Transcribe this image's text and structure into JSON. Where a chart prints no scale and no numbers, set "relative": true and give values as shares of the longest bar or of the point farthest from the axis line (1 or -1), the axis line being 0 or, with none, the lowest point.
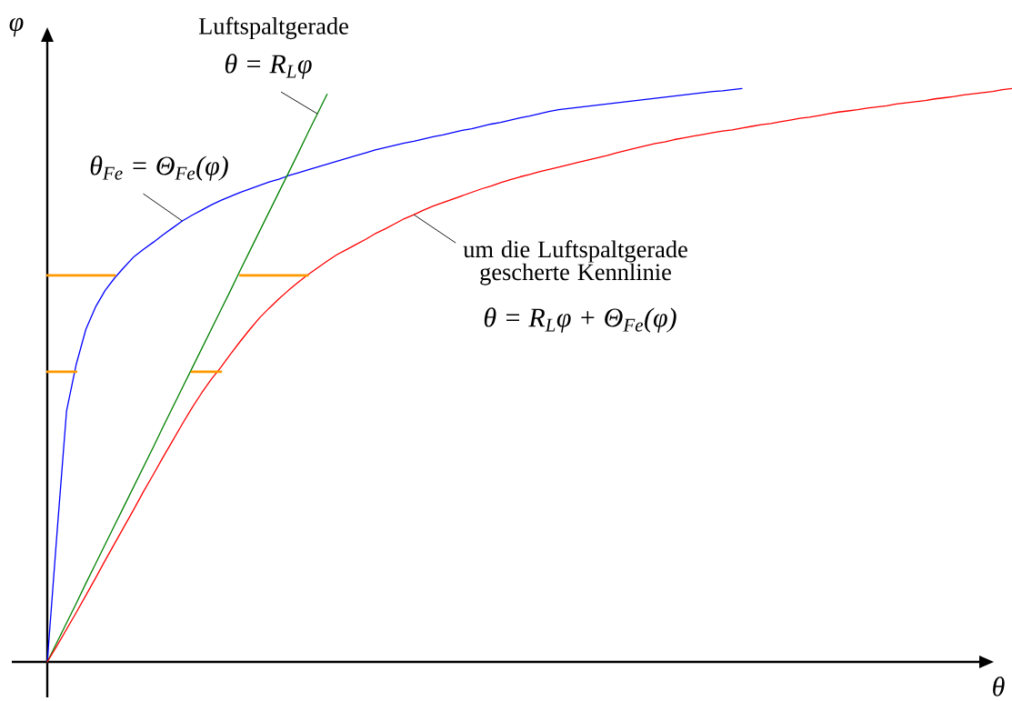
{
  "chart_data": {
    "type": "line",
    "relative": true,
    "xlabel": "θ",
    "ylabel": "φ",
    "categories": [
      null,
      null,
      null,
      null,
      null,
      null,
      null,
      null,
      null,
      null,
      null,
      null,
      null,
      null,
      null,
      null,
      null,
      null,
      null,
      null,
      null,
      null,
      null,
      null,
      null,
      null,
      null,
      null,
      null,
      null,
      null,
      null,
      null,
      null,
      null,
      null,
      null,
      null,
      null,
      null,
      null,
      null,
      null,
      null,
      null,
      null,
      null,
      null,
      null,
      null,
      null,
      null,
      null,
      null,
      null,
      null,
      null,
      null,
      null,
      null,
      null,
      null,
      null,
      null,
      null,
      null,
      null,
      null,
      null,
      null,
      null,
      null,
      null,
      null,
      null,
      null,
      null,
      null,
      null,
      null,
      null,
      null,
      null,
      null,
      null,
      null,
      null,
      null,
      null,
      null,
      null,
      null,
      null,
      null,
      null,
      null,
      null,
      null,
      null,
      null,
      null
    ],
    "series": [
      {
        "color": "#0000ff",
        "values": [
          0,
          0.223,
          0.438,
          0.519,
          0.58,
          0.619,
          0.648,
          0.67,
          0.689,
          0.707,
          0.72,
          0.732,
          0.745,
          0.757,
          0.769,
          0.779,
          0.788,
          0.797,
          0.805,
          0.812,
          0.819,
          0.825,
          0.831,
          0.837,
          0.842,
          0.848,
          0.853,
          0.858,
          0.863,
          0.868,
          0.873,
          0.878,
          0.883,
          0.888,
          0.893,
          0.897,
          0.901,
          0.905,
          0.908,
          0.912,
          0.916,
          0.919,
          0.923,
          0.927,
          0.93,
          0.934,
          0.938,
          0.941,
          0.945,
          0.949,
          0.952,
          0.956,
          0.96,
          0.963,
          0.965,
          0.967,
          0.969,
          0.971,
          0.973,
          0.975,
          0.977,
          0.979,
          0.981,
          0.983,
          0.985,
          0.987,
          0.989,
          0.991,
          0.993,
          0.995,
          0.996,
          0.998,
          1,
          null,
          null,
          null,
          null,
          null,
          null,
          null,
          null,
          null,
          null,
          null,
          null,
          null,
          null,
          null,
          null,
          null,
          null,
          null,
          null,
          null,
          null,
          null,
          null,
          null,
          null,
          null,
          null
        ]
      },
      {
        "color": "#008000",
        "values": [
          0,
          0.034,
          0.068,
          0.102,
          0.137,
          0.171,
          0.205,
          0.239,
          0.273,
          0.307,
          0.341,
          0.375,
          0.41,
          0.444,
          0.478,
          0.512,
          0.546,
          0.58,
          0.614,
          0.648,
          0.683,
          0.717,
          0.751,
          0.785,
          0.819,
          0.853,
          0.887,
          0.922,
          0.956,
          0.99,
          null,
          null,
          null,
          null,
          null,
          null,
          null,
          null,
          null,
          null,
          null,
          null,
          null,
          null,
          null,
          null,
          null,
          null,
          null,
          null,
          null,
          null,
          null,
          null,
          null,
          null,
          null,
          null,
          null,
          null,
          null,
          null,
          null,
          null,
          null,
          null,
          null,
          null,
          null,
          null,
          null,
          null,
          null,
          null,
          null,
          null,
          null,
          null,
          null,
          null,
          null,
          null,
          null,
          null,
          null,
          null,
          null,
          null,
          null,
          null,
          null,
          null,
          null,
          null,
          null,
          null,
          null,
          null,
          null,
          null,
          null
        ]
      },
      {
        "color": "#ff0000",
        "values": [
          0,
          0.028,
          0.057,
          0.086,
          0.116,
          0.146,
          0.177,
          0.207,
          0.237,
          0.267,
          0.298,
          0.327,
          0.357,
          0.386,
          0.415,
          0.443,
          0.469,
          0.493,
          0.514,
          0.537,
          0.559,
          0.58,
          0.6,
          0.617,
          0.633,
          0.648,
          0.662,
          0.675,
          0.687,
          0.699,
          0.71,
          0.719,
          0.728,
          0.737,
          0.747,
          0.755,
          0.764,
          0.773,
          0.78,
          0.788,
          0.795,
          0.801,
          0.807,
          0.813,
          0.819,
          0.825,
          0.83,
          0.836,
          0.841,
          0.846,
          0.85,
          0.855,
          0.859,
          0.863,
          0.867,
          0.871,
          0.875,
          0.879,
          0.883,
          0.888,
          0.892,
          0.896,
          0.9,
          0.904,
          0.907,
          0.911,
          0.914,
          0.917,
          0.92,
          0.923,
          0.926,
          0.928,
          0.931,
          0.934,
          0.937,
          0.939,
          0.942,
          0.945,
          0.948,
          0.95,
          0.953,
          0.956,
          0.959,
          0.961,
          0.963,
          0.966,
          0.968,
          0.97,
          0.973,
          0.975,
          0.977,
          0.979,
          0.982,
          0.984,
          0.986,
          0.989,
          0.991,
          0.993,
          0.995,
          0.998,
          1
        ]
      },
      {
        "color": "#ff9900",
        "values": [
          0.674,
          0.674,
          0.674,
          0.674,
          0.674,
          0.674,
          0.674,
          0.674,
          null,
          null,
          null,
          null,
          null,
          null,
          null,
          null,
          null,
          null,
          null,
          null,
          0.674,
          0.674,
          0.674,
          0.674,
          0.674,
          0.674,
          0.674,
          0.674,
          null,
          null,
          null,
          null,
          null,
          null,
          null,
          null,
          null,
          null,
          null,
          null,
          null,
          null,
          null,
          null,
          null,
          null,
          null,
          null,
          null,
          null,
          null,
          null,
          null,
          null,
          null,
          null,
          null,
          null,
          null,
          null,
          null,
          null,
          null,
          null,
          null,
          null,
          null,
          null,
          null,
          null,
          null,
          null,
          null,
          null,
          null,
          null,
          null,
          null,
          null,
          null,
          null,
          null,
          null,
          null,
          null,
          null,
          null,
          null,
          null,
          null,
          null,
          null,
          null,
          null,
          null,
          null,
          null,
          null,
          null,
          null,
          null
        ]
      },
      {
        "color": "#ff9900",
        "values": [
          0.506,
          0.506,
          0.506,
          0.506,
          null,
          null,
          null,
          null,
          null,
          null,
          null,
          null,
          null,
          null,
          null,
          0.506,
          0.506,
          0.506,
          0.506,
          null,
          null,
          null,
          null,
          null,
          null,
          null,
          null,
          null,
          null,
          null,
          null,
          null,
          null,
          null,
          null,
          null,
          null,
          null,
          null,
          null,
          null,
          null,
          null,
          null,
          null,
          null,
          null,
          null,
          null,
          null,
          null,
          null,
          null,
          null,
          null,
          null,
          null,
          null,
          null,
          null,
          null,
          null,
          null,
          null,
          null,
          null,
          null,
          null,
          null,
          null,
          null,
          null,
          null,
          null,
          null,
          null,
          null,
          null,
          null,
          null,
          null,
          null,
          null,
          null,
          null,
          null,
          null,
          null,
          null,
          null,
          null,
          null,
          null,
          null,
          null,
          null,
          null,
          null,
          null,
          null,
          null
        ]
      }
    ],
    "annotations": [
      "Luftspaltgerade",
      "θ = R$_{L}$φ",
      "θ$_{Fe}$ = Θ$_{Fe}$(φ)",
      "um die Luftspaltgerade gescherte Kennlinie",
      "θ = R$_{L}$φ + Θ$_{Fe}$(φ)"
    ]
  }
}
